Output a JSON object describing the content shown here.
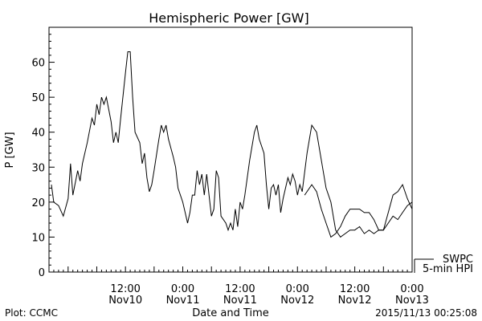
{
  "chart_data": {
    "type": "line",
    "title": "Hemispheric Power [GW]",
    "ylabel": "P [GW]",
    "xlabel": "Date and Time",
    "ylim": [
      0,
      70
    ],
    "yticks": [
      0,
      10,
      20,
      30,
      40,
      50,
      60
    ],
    "xlim": [
      "2015-11-09T20:00",
      "2015-11-13T00:00"
    ],
    "xticks": [
      {
        "time": "2015-11-10T12:00",
        "label_time": "12:00",
        "label_date": "Nov10"
      },
      {
        "time": "2015-11-11T00:00",
        "label_time": "0:00",
        "label_date": "Nov11"
      },
      {
        "time": "2015-11-11T12:00",
        "label_time": "12:00",
        "label_date": "Nov11"
      },
      {
        "time": "2015-11-12T00:00",
        "label_time": "0:00",
        "label_date": "Nov12"
      },
      {
        "time": "2015-11-12T12:00",
        "label_time": "12:00",
        "label_date": "Nov12"
      },
      {
        "time": "2015-11-13T00:00",
        "label_time": "0:00",
        "label_date": "Nov13"
      }
    ],
    "grid": false,
    "legend": {
      "position": "bottom-right",
      "entries": [
        "SWPC",
        "5-min HPI"
      ]
    },
    "series": [
      {
        "name": "SWPC",
        "color": "#000000",
        "points": [
          [
            "2015-11-09T20:30",
            25
          ],
          [
            "2015-11-09T21:00",
            20
          ],
          [
            "2015-11-09T22:00",
            19
          ],
          [
            "2015-11-09T23:00",
            16
          ],
          [
            "2015-11-10T00:00",
            21
          ],
          [
            "2015-11-10T00:30",
            31
          ],
          [
            "2015-11-10T01:00",
            22
          ],
          [
            "2015-11-10T02:00",
            29
          ],
          [
            "2015-11-10T02:30",
            26
          ],
          [
            "2015-11-10T03:00",
            31
          ],
          [
            "2015-11-10T04:00",
            37
          ],
          [
            "2015-11-10T05:00",
            44
          ],
          [
            "2015-11-10T05:30",
            42
          ],
          [
            "2015-11-10T06:00",
            48
          ],
          [
            "2015-11-10T06:30",
            45
          ],
          [
            "2015-11-10T07:00",
            50
          ],
          [
            "2015-11-10T07:30",
            48
          ],
          [
            "2015-11-10T08:00",
            50
          ],
          [
            "2015-11-10T09:00",
            43
          ],
          [
            "2015-11-10T09:30",
            37
          ],
          [
            "2015-11-10T10:00",
            40
          ],
          [
            "2015-11-10T10:30",
            37
          ],
          [
            "2015-11-10T11:00",
            44
          ],
          [
            "2015-11-10T12:00",
            57
          ],
          [
            "2015-11-10T12:30",
            63
          ],
          [
            "2015-11-10T13:00",
            63
          ],
          [
            "2015-11-10T13:30",
            50
          ],
          [
            "2015-11-10T14:00",
            40
          ],
          [
            "2015-11-10T15:00",
            37
          ],
          [
            "2015-11-10T15:30",
            31
          ],
          [
            "2015-11-10T16:00",
            34
          ],
          [
            "2015-11-10T16:30",
            27
          ],
          [
            "2015-11-10T17:00",
            23
          ],
          [
            "2015-11-10T17:30",
            25
          ],
          [
            "2015-11-10T18:00",
            29
          ],
          [
            "2015-11-10T19:00",
            38
          ],
          [
            "2015-11-10T19:30",
            42
          ],
          [
            "2015-11-10T20:00",
            40
          ],
          [
            "2015-11-10T20:30",
            42
          ],
          [
            "2015-11-10T21:00",
            38
          ],
          [
            "2015-11-10T22:00",
            33
          ],
          [
            "2015-11-10T22:30",
            30
          ],
          [
            "2015-11-10T23:00",
            24
          ],
          [
            "2015-11-11T00:00",
            20
          ],
          [
            "2015-11-11T00:30",
            17
          ],
          [
            "2015-11-11T01:00",
            14
          ],
          [
            "2015-11-11T01:30",
            17
          ],
          [
            "2015-11-11T02:00",
            22
          ],
          [
            "2015-11-11T02:30",
            22
          ],
          [
            "2015-11-11T03:00",
            29
          ],
          [
            "2015-11-11T03:30",
            25
          ],
          [
            "2015-11-11T04:00",
            28
          ],
          [
            "2015-11-11T04:30",
            22
          ],
          [
            "2015-11-11T05:00",
            28
          ],
          [
            "2015-11-11T05:30",
            22
          ],
          [
            "2015-11-11T06:00",
            16
          ],
          [
            "2015-11-11T06:30",
            18
          ],
          [
            "2015-11-11T07:00",
            29
          ],
          [
            "2015-11-11T07:30",
            27
          ],
          [
            "2015-11-11T08:00",
            16
          ],
          [
            "2015-11-11T09:00",
            14
          ],
          [
            "2015-11-11T09:30",
            12
          ],
          [
            "2015-11-11T10:00",
            14
          ],
          [
            "2015-11-11T10:30",
            12
          ],
          [
            "2015-11-11T11:00",
            18
          ],
          [
            "2015-11-11T11:30",
            13
          ],
          [
            "2015-11-11T12:00",
            20
          ],
          [
            "2015-11-11T12:30",
            18
          ],
          [
            "2015-11-11T13:00",
            22
          ],
          [
            "2015-11-11T14:00",
            32
          ],
          [
            "2015-11-11T15:00",
            40
          ],
          [
            "2015-11-11T15:30",
            42
          ],
          [
            "2015-11-11T16:00",
            38
          ],
          [
            "2015-11-11T17:00",
            34
          ],
          [
            "2015-11-11T17:30",
            25
          ],
          [
            "2015-11-11T18:00",
            18
          ],
          [
            "2015-11-11T18:30",
            24
          ],
          [
            "2015-11-11T19:00",
            25
          ],
          [
            "2015-11-11T19:30",
            22
          ],
          [
            "2015-11-11T20:00",
            25
          ],
          [
            "2015-11-11T20:30",
            17
          ],
          [
            "2015-11-11T21:00",
            21
          ],
          [
            "2015-11-11T22:00",
            27
          ],
          [
            "2015-11-11T22:30",
            25
          ],
          [
            "2015-11-11T23:00",
            28
          ],
          [
            "2015-11-11T23:30",
            26
          ],
          [
            "2015-11-12T00:00",
            22
          ],
          [
            "2015-11-12T00:30",
            25
          ],
          [
            "2015-11-12T01:00",
            23
          ],
          [
            "2015-11-12T02:00",
            34
          ],
          [
            "2015-11-12T03:00",
            42
          ],
          [
            "2015-11-12T04:00",
            40
          ],
          [
            "2015-11-12T05:00",
            32
          ],
          [
            "2015-11-12T06:00",
            24
          ],
          [
            "2015-11-12T07:00",
            20
          ],
          [
            "2015-11-12T08:00",
            12
          ],
          [
            "2015-11-12T09:00",
            10
          ],
          [
            "2015-11-12T10:00",
            11
          ],
          [
            "2015-11-12T11:00",
            12
          ],
          [
            "2015-11-12T12:00",
            12
          ],
          [
            "2015-11-12T13:00",
            13
          ],
          [
            "2015-11-12T14:00",
            11
          ],
          [
            "2015-11-12T15:00",
            12
          ],
          [
            "2015-11-12T16:00",
            11
          ],
          [
            "2015-11-12T17:00",
            12
          ],
          [
            "2015-11-12T18:00",
            12
          ],
          [
            "2015-11-12T19:00",
            17
          ],
          [
            "2015-11-12T20:00",
            22
          ],
          [
            "2015-11-12T21:00",
            23
          ],
          [
            "2015-11-12T22:00",
            25
          ],
          [
            "2015-11-12T23:00",
            21
          ],
          [
            "2015-11-13T00:00",
            18
          ]
        ]
      },
      {
        "name": "5-min HPI",
        "color": "#000000",
        "points": [
          [
            "2015-11-12T01:30",
            22
          ],
          [
            "2015-11-12T03:00",
            25
          ],
          [
            "2015-11-12T04:00",
            23
          ],
          [
            "2015-11-12T05:00",
            18
          ],
          [
            "2015-11-12T06:00",
            14
          ],
          [
            "2015-11-12T07:00",
            10
          ],
          [
            "2015-11-12T08:00",
            11
          ],
          [
            "2015-11-12T09:00",
            13
          ],
          [
            "2015-11-12T10:00",
            16
          ],
          [
            "2015-11-12T11:00",
            18
          ],
          [
            "2015-11-12T12:00",
            18
          ],
          [
            "2015-11-12T13:00",
            18
          ],
          [
            "2015-11-12T14:00",
            17
          ],
          [
            "2015-11-12T15:00",
            17
          ],
          [
            "2015-11-12T16:00",
            15
          ],
          [
            "2015-11-12T17:00",
            12
          ],
          [
            "2015-11-12T18:00",
            12
          ],
          [
            "2015-11-12T19:00",
            14
          ],
          [
            "2015-11-12T20:00",
            16
          ],
          [
            "2015-11-12T21:00",
            15
          ],
          [
            "2015-11-12T22:00",
            17
          ],
          [
            "2015-11-12T23:00",
            19
          ],
          [
            "2015-11-13T00:00",
            20
          ]
        ]
      }
    ]
  },
  "footer": {
    "left": "Plot: CCMC",
    "right": "2015/11/13 00:25:08"
  }
}
